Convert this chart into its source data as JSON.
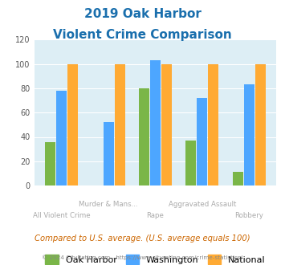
{
  "title_line1": "2019 Oak Harbor",
  "title_line2": "Violent Crime Comparison",
  "categories": [
    "All Violent Crime",
    "Murder & Mans...",
    "Rape",
    "Aggravated Assault",
    "Robbery"
  ],
  "oak_harbor": [
    36,
    0,
    80,
    37,
    11
  ],
  "washington": [
    78,
    52,
    103,
    72,
    83
  ],
  "national": [
    100,
    100,
    100,
    100,
    100
  ],
  "oak_harbor_color": "#7ab648",
  "washington_color": "#4da6ff",
  "national_color": "#ffaa33",
  "ylim": [
    0,
    120
  ],
  "yticks": [
    0,
    20,
    40,
    60,
    80,
    100,
    120
  ],
  "plot_bg": "#ddeef5",
  "title_color": "#1a6fad",
  "label_color": "#aaaaaa",
  "footnote1": "Compared to U.S. average. (U.S. average equals 100)",
  "footnote2": "© 2024 CityRating.com - https://www.cityrating.com/crime-statistics/",
  "footnote1_color": "#cc6600",
  "footnote2_color": "#888888",
  "legend_labels": [
    "Oak Harbor",
    "Washington",
    "National"
  ],
  "x_labels_top": [
    "",
    "Murder & Mans...",
    "",
    "Aggravated Assault",
    ""
  ],
  "x_labels_bottom": [
    "All Violent Crime",
    "",
    "Rape",
    "",
    "Robbery"
  ]
}
